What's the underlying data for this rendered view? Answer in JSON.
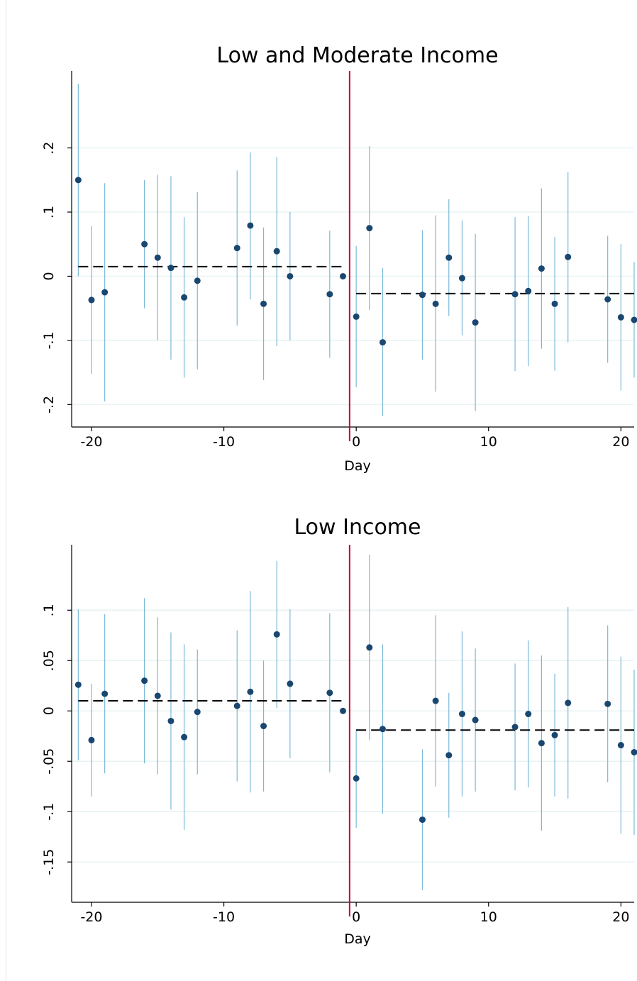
{
  "chart_data": [
    {
      "type": "scatter",
      "title": "Low and Moderate Income",
      "xlabel": "Day",
      "ylabel": "",
      "xlim": [
        -21.5,
        21
      ],
      "ylim": [
        -0.235,
        0.32
      ],
      "xticks": [
        -20,
        -10,
        0,
        10,
        20
      ],
      "xtick_labels": [
        "-20",
        "-10",
        "0",
        "10",
        "20"
      ],
      "yticks": [
        -0.2,
        -0.1,
        0,
        0.1,
        0.2
      ],
      "ytick_labels": [
        "-.2",
        "-.1",
        "0",
        ".1",
        ".2"
      ],
      "grid": "horizontal",
      "event_line_x": -0.5,
      "colors": {
        "point": "#1a476f",
        "ci": "#7ab9d9",
        "event_line": "#c10534",
        "fit_line": "#000000",
        "grid": "#eaf2f3"
      },
      "pre_mean": {
        "x": [
          -21,
          -1
        ],
        "y": 0.015
      },
      "post_mean": {
        "x": [
          0,
          21
        ],
        "y": -0.027
      },
      "series": [
        {
          "points": [
            {
              "x": -21,
              "y": 0.15,
              "lo": 0.0,
              "hi": 0.3
            },
            {
              "x": -20,
              "y": -0.037,
              "lo": -0.152,
              "hi": 0.078
            },
            {
              "x": -19,
              "y": -0.025,
              "lo": -0.195,
              "hi": 0.145
            },
            {
              "x": -16,
              "y": 0.05,
              "lo": -0.05,
              "hi": 0.15
            },
            {
              "x": -15,
              "y": 0.029,
              "lo": -0.1,
              "hi": 0.158
            },
            {
              "x": -14,
              "y": 0.013,
              "lo": -0.13,
              "hi": 0.156
            },
            {
              "x": -13,
              "y": -0.033,
              "lo": -0.158,
              "hi": 0.092
            },
            {
              "x": -12,
              "y": -0.007,
              "lo": -0.145,
              "hi": 0.131
            },
            {
              "x": -9,
              "y": 0.044,
              "lo": -0.077,
              "hi": 0.165
            },
            {
              "x": -8,
              "y": 0.079,
              "lo": -0.036,
              "hi": 0.193
            },
            {
              "x": -7,
              "y": -0.043,
              "lo": -0.162,
              "hi": 0.076
            },
            {
              "x": -6,
              "y": 0.039,
              "lo": -0.109,
              "hi": 0.186
            },
            {
              "x": -5,
              "y": 0.0,
              "lo": -0.1,
              "hi": 0.1
            },
            {
              "x": -2,
              "y": -0.028,
              "lo": -0.127,
              "hi": 0.071
            },
            {
              "x": -1,
              "y": 0.0,
              "lo": 0.0,
              "hi": 0.0
            },
            {
              "x": 0,
              "y": -0.063,
              "lo": -0.173,
              "hi": 0.047
            },
            {
              "x": 1,
              "y": 0.075,
              "lo": -0.053,
              "hi": 0.203
            },
            {
              "x": 2,
              "y": -0.103,
              "lo": -0.218,
              "hi": 0.013
            },
            {
              "x": 5,
              "y": -0.029,
              "lo": -0.13,
              "hi": 0.072
            },
            {
              "x": 6,
              "y": -0.043,
              "lo": -0.18,
              "hi": 0.095
            },
            {
              "x": 7,
              "y": 0.029,
              "lo": -0.062,
              "hi": 0.12
            },
            {
              "x": 8,
              "y": -0.003,
              "lo": -0.092,
              "hi": 0.087
            },
            {
              "x": 9,
              "y": -0.072,
              "lo": -0.21,
              "hi": 0.066
            },
            {
              "x": 12,
              "y": -0.028,
              "lo": -0.148,
              "hi": 0.092
            },
            {
              "x": 13,
              "y": -0.023,
              "lo": -0.14,
              "hi": 0.094
            },
            {
              "x": 14,
              "y": 0.012,
              "lo": -0.113,
              "hi": 0.137
            },
            {
              "x": 15,
              "y": -0.043,
              "lo": -0.147,
              "hi": 0.061
            },
            {
              "x": 16,
              "y": 0.03,
              "lo": -0.103,
              "hi": 0.162
            },
            {
              "x": 19,
              "y": -0.036,
              "lo": -0.135,
              "hi": 0.063
            },
            {
              "x": 20,
              "y": -0.064,
              "lo": -0.178,
              "hi": 0.05
            },
            {
              "x": 21,
              "y": -0.068,
              "lo": -0.158,
              "hi": 0.022
            }
          ]
        }
      ]
    },
    {
      "type": "scatter",
      "title": "Low Income",
      "xlabel": "Day",
      "ylabel": "",
      "xlim": [
        -21.5,
        21
      ],
      "ylim": [
        -0.19,
        0.165
      ],
      "xticks": [
        -20,
        -10,
        0,
        10,
        20
      ],
      "xtick_labels": [
        "-20",
        "-10",
        "0",
        "10",
        "20"
      ],
      "yticks": [
        -0.15,
        -0.1,
        -0.05,
        0,
        0.05,
        0.1
      ],
      "ytick_labels": [
        "-.15",
        "-.1",
        "-.05",
        "0",
        ".05",
        ".1"
      ],
      "grid": "horizontal",
      "event_line_x": -0.5,
      "colors": {
        "point": "#1a476f",
        "ci": "#7ab9d9",
        "event_line": "#c10534",
        "fit_line": "#000000",
        "grid": "#eaf2f3"
      },
      "pre_mean": {
        "x": [
          -21,
          -1
        ],
        "y": 0.01
      },
      "post_mean": {
        "x": [
          0,
          21
        ],
        "y": -0.019
      },
      "series": [
        {
          "points": [
            {
              "x": -21,
              "y": 0.026,
              "lo": -0.049,
              "hi": 0.101
            },
            {
              "x": -20,
              "y": -0.029,
              "lo": -0.085,
              "hi": 0.027
            },
            {
              "x": -19,
              "y": 0.017,
              "lo": -0.062,
              "hi": 0.096
            },
            {
              "x": -16,
              "y": 0.03,
              "lo": -0.052,
              "hi": 0.112
            },
            {
              "x": -15,
              "y": 0.015,
              "lo": -0.063,
              "hi": 0.093
            },
            {
              "x": -14,
              "y": -0.01,
              "lo": -0.098,
              "hi": 0.078
            },
            {
              "x": -13,
              "y": -0.026,
              "lo": -0.118,
              "hi": 0.066
            },
            {
              "x": -12,
              "y": -0.001,
              "lo": -0.063,
              "hi": 0.061
            },
            {
              "x": -9,
              "y": 0.005,
              "lo": -0.07,
              "hi": 0.08
            },
            {
              "x": -8,
              "y": 0.019,
              "lo": -0.081,
              "hi": 0.119
            },
            {
              "x": -7,
              "y": -0.015,
              "lo": -0.08,
              "hi": 0.05
            },
            {
              "x": -6,
              "y": 0.076,
              "lo": 0.003,
              "hi": 0.149
            },
            {
              "x": -5,
              "y": 0.027,
              "lo": -0.047,
              "hi": 0.101
            },
            {
              "x": -2,
              "y": 0.018,
              "lo": -0.061,
              "hi": 0.097
            },
            {
              "x": -1,
              "y": 0.0,
              "lo": 0.0,
              "hi": 0.0
            },
            {
              "x": 0,
              "y": -0.067,
              "lo": -0.116,
              "hi": -0.018
            },
            {
              "x": 1,
              "y": 0.063,
              "lo": -0.029,
              "hi": 0.155
            },
            {
              "x": 2,
              "y": -0.018,
              "lo": -0.102,
              "hi": 0.066
            },
            {
              "x": 5,
              "y": -0.108,
              "lo": -0.178,
              "hi": -0.038
            },
            {
              "x": 6,
              "y": 0.01,
              "lo": -0.075,
              "hi": 0.095
            },
            {
              "x": 7,
              "y": -0.044,
              "lo": -0.106,
              "hi": 0.018
            },
            {
              "x": 8,
              "y": -0.003,
              "lo": -0.085,
              "hi": 0.079
            },
            {
              "x": 9,
              "y": -0.009,
              "lo": -0.08,
              "hi": 0.062
            },
            {
              "x": 12,
              "y": -0.016,
              "lo": -0.079,
              "hi": 0.047
            },
            {
              "x": 13,
              "y": -0.003,
              "lo": -0.076,
              "hi": 0.07
            },
            {
              "x": 14,
              "y": -0.032,
              "lo": -0.119,
              "hi": 0.055
            },
            {
              "x": 15,
              "y": -0.024,
              "lo": -0.085,
              "hi": 0.037
            },
            {
              "x": 16,
              "y": 0.008,
              "lo": -0.087,
              "hi": 0.103
            },
            {
              "x": 19,
              "y": 0.007,
              "lo": -0.071,
              "hi": 0.085
            },
            {
              "x": 20,
              "y": -0.034,
              "lo": -0.122,
              "hi": 0.054
            },
            {
              "x": 21,
              "y": -0.041,
              "lo": -0.123,
              "hi": 0.041
            }
          ]
        }
      ]
    }
  ]
}
